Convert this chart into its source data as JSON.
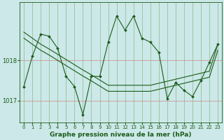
{
  "xlabel": "Graphe pression niveau de la mer (hPa)",
  "bg_color": "#cce8e8",
  "plot_bg_color": "#cce8e8",
  "grid_color_h": "#cc8888",
  "grid_color_v": "#88bb88",
  "line_color": "#1a5c1a",
  "marker_color": "#1a5c1a",
  "yticks": [
    1017,
    1018
  ],
  "ylim": [
    1016.45,
    1019.45
  ],
  "xlim": [
    -0.5,
    23.5
  ],
  "xticks": [
    0,
    1,
    2,
    3,
    4,
    5,
    6,
    7,
    8,
    9,
    10,
    11,
    12,
    13,
    14,
    15,
    16,
    17,
    18,
    19,
    20,
    21,
    22,
    23
  ],
  "x": [
    0,
    1,
    2,
    3,
    4,
    5,
    6,
    7,
    8,
    9,
    10,
    11,
    12,
    13,
    14,
    15,
    16,
    17,
    18,
    19,
    20,
    21,
    22,
    23
  ],
  "y_main": [
    1017.35,
    1018.1,
    1018.65,
    1018.6,
    1018.3,
    1017.6,
    1017.35,
    1016.65,
    1017.6,
    1017.6,
    1018.45,
    1019.1,
    1018.75,
    1019.1,
    1018.55,
    1018.45,
    1018.2,
    1017.05,
    1017.45,
    1017.25,
    1017.1,
    1017.5,
    1017.95,
    1018.4
  ],
  "y_trend1": [
    1018.7,
    1018.55,
    1018.4,
    1018.28,
    1018.15,
    1018.02,
    1017.89,
    1017.76,
    1017.64,
    1017.51,
    1017.38,
    1017.38,
    1017.38,
    1017.38,
    1017.38,
    1017.38,
    1017.43,
    1017.48,
    1017.53,
    1017.58,
    1017.63,
    1017.68,
    1017.73,
    1018.4
  ],
  "y_trend2": [
    1018.55,
    1018.4,
    1018.25,
    1018.13,
    1018.0,
    1017.87,
    1017.74,
    1017.61,
    1017.49,
    1017.36,
    1017.23,
    1017.23,
    1017.23,
    1017.23,
    1017.23,
    1017.23,
    1017.28,
    1017.33,
    1017.38,
    1017.43,
    1017.48,
    1017.53,
    1017.58,
    1018.25
  ],
  "marker_size": 2.0,
  "line_width": 0.8,
  "xlabel_fontsize": 6.5,
  "ytick_fontsize": 6,
  "xtick_fontsize": 5
}
